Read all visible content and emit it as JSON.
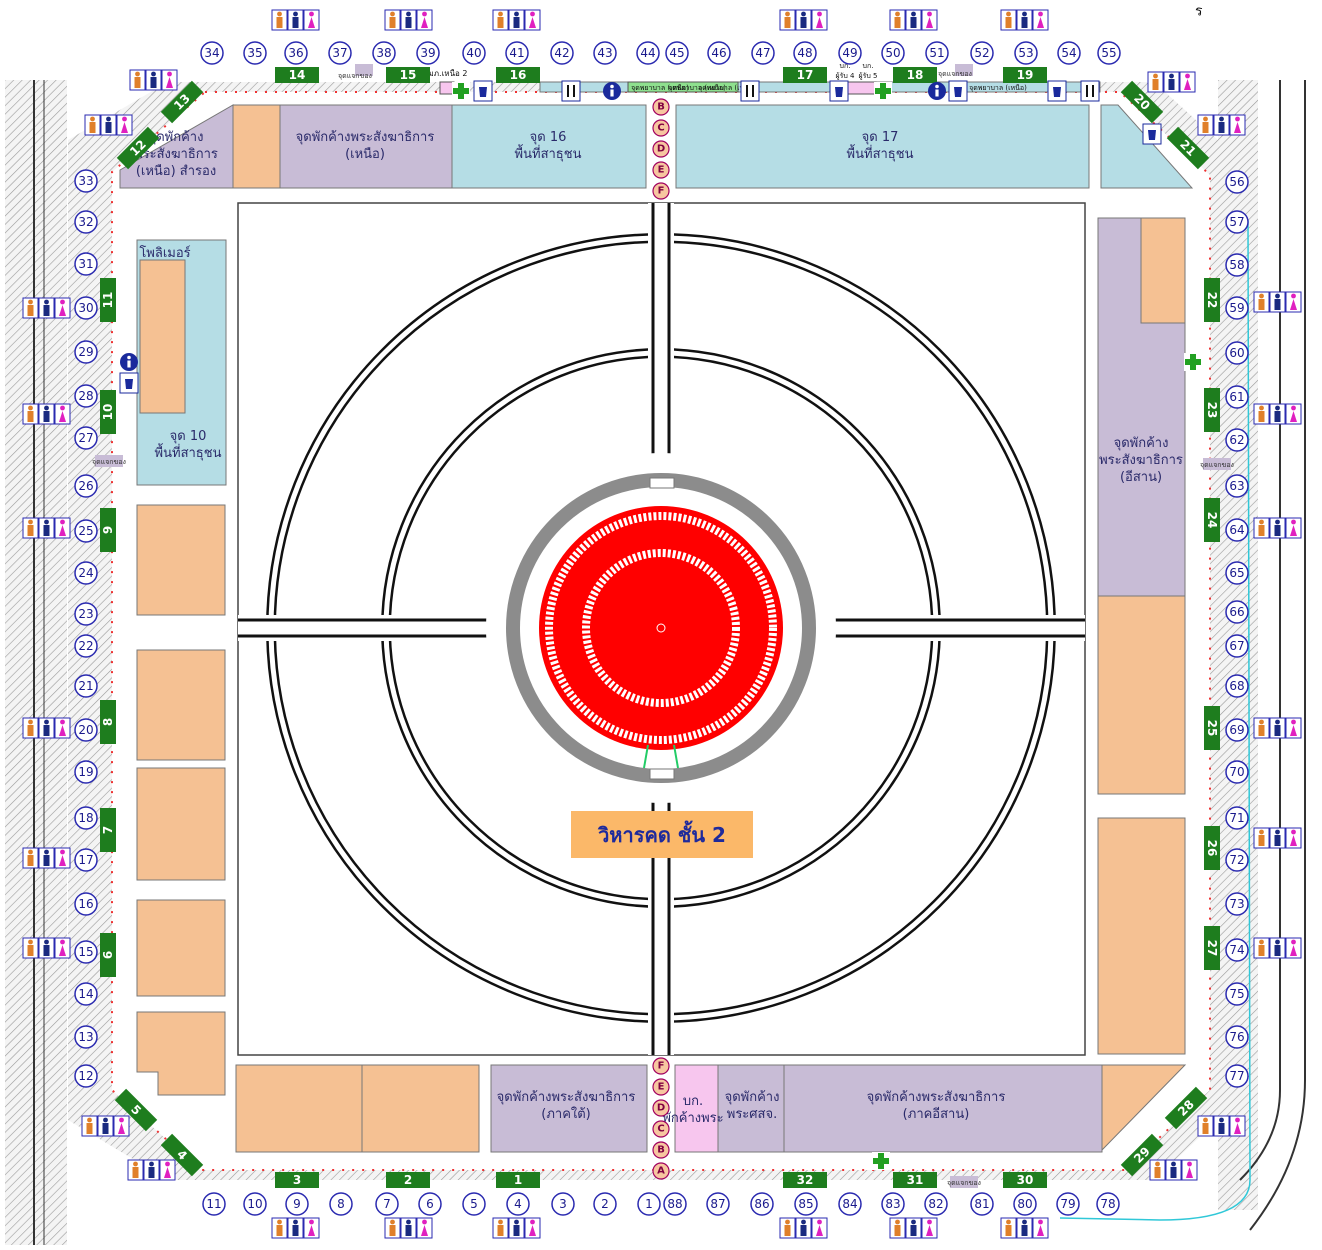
{
  "map_title": "วิหารคด ชั้น 2",
  "corner_text": "ร",
  "zones": [
    {
      "id": "north-left",
      "lines": [
        "จุดพักค้าง",
        "พระสังฆาธิการ",
        "(เหนือ) สำรอง"
      ],
      "color": "#c8bcd6"
    },
    {
      "id": "north",
      "lines": [
        "จุดพักค้างพระสังฆาธิการ",
        "(เหนือ)"
      ],
      "color": "#c8bcd6"
    },
    {
      "id": "point16",
      "lines": [
        "จุด 16",
        "พื้นที่สาธุชน"
      ],
      "color": "#b5dde5"
    },
    {
      "id": "point17",
      "lines": [
        "จุด 17",
        "พื้นที่สาธุชน"
      ],
      "color": "#b5dde5"
    },
    {
      "id": "point10",
      "lines": [
        "จุด 10",
        "พื้นที่สาธุชน"
      ],
      "color": "#b5dde5"
    },
    {
      "id": "polymer",
      "lines": [
        "โพลิเมอร์"
      ],
      "color": "#b5dde5"
    },
    {
      "id": "east",
      "lines": [
        "จุดพักค้าง",
        "พระสังฆาธิการ",
        "(อีสาน)"
      ],
      "color": "#c8bcd6"
    },
    {
      "id": "south",
      "lines": [
        "จุดพักค้างพระสังฆาธิการ",
        "(ภาคใต้)"
      ],
      "color": "#c8bcd6"
    },
    {
      "id": "pink",
      "lines": [
        "บก.",
        "พักค้างพระ"
      ],
      "color": "#f7c6ee"
    },
    {
      "id": "sorchor",
      "lines": [
        "จุดพักค้าง",
        "พระศสจ."
      ],
      "color": "#c8bcd6"
    },
    {
      "id": "southeast",
      "lines": [
        "จุดพักค้างพระสังฆาธิการ",
        "(ภาคอีสาน)"
      ],
      "color": "#c8bcd6"
    }
  ],
  "small_labels": {
    "north_notes": [
      "จุดแจกของ",
      "มภ.เหนือ 2",
      "จุดพยาบาล (เหนือ)",
      "จุดพยาบาล (เหนือ)",
      "จุดพยาบาล (เหนือ)",
      "บก.",
      "ผู้รับ 4",
      "บก.",
      "ผู้รับ 5",
      "จุดแจกของ",
      "จุดพยาบาล (เหนือ)"
    ],
    "side_notes": [
      "จุดแจกของ",
      "จุดแจกของ",
      "จุดแจกของ"
    ]
  },
  "gates": [
    "1",
    "2",
    "3",
    "4",
    "5",
    "6",
    "7",
    "8",
    "9",
    "10",
    "11",
    "12",
    "13",
    "14",
    "15",
    "16",
    "17",
    "18",
    "19",
    "20",
    "21",
    "22",
    "23",
    "24",
    "25",
    "26",
    "27",
    "28",
    "29",
    "30",
    "31",
    "32"
  ],
  "letters_top": [
    "B",
    "C",
    "D",
    "E",
    "F"
  ],
  "letters_bottom": [
    "F",
    "E",
    "D",
    "C",
    "B",
    "A"
  ],
  "stations_top": [
    "34",
    "35",
    "36",
    "37",
    "38",
    "39",
    "40",
    "41",
    "42",
    "43",
    "44",
    "45",
    "46",
    "47",
    "48",
    "49",
    "50",
    "51",
    "52",
    "53",
    "54",
    "55"
  ],
  "stations_left": [
    "33",
    "32",
    "31",
    "30",
    "29",
    "28",
    "27",
    "26",
    "25",
    "24",
    "23",
    "22",
    "21",
    "20",
    "19",
    "18",
    "17",
    "16",
    "15",
    "14",
    "13",
    "12"
  ],
  "stations_right": [
    "56",
    "57",
    "58",
    "59",
    "60",
    "61",
    "62",
    "63",
    "64",
    "65",
    "66",
    "67",
    "68",
    "69",
    "70",
    "71",
    "72",
    "73",
    "74",
    "75",
    "76",
    "77"
  ],
  "stations_bottom": [
    "11",
    "10",
    "9",
    "8",
    "7",
    "6",
    "5",
    "4",
    "3",
    "2",
    "1",
    "88",
    "87",
    "86",
    "85",
    "84",
    "83",
    "82",
    "81",
    "80",
    "79",
    "78"
  ],
  "colors": {
    "gate": "#1e7d1e",
    "station_ring": "#2a2ab0",
    "stupa": "#ff0000",
    "path": "#111111",
    "bldg": "#f5c193",
    "lavender": "#c8bcd6",
    "lightblue": "#b5dde5",
    "pink": "#f7c6ee",
    "title_bg": "#fbb869",
    "title_fg": "#1e2a9c"
  },
  "icons": [
    "toilet-icon",
    "info-icon",
    "first-aid-icon",
    "food-icon",
    "drink-icon"
  ]
}
